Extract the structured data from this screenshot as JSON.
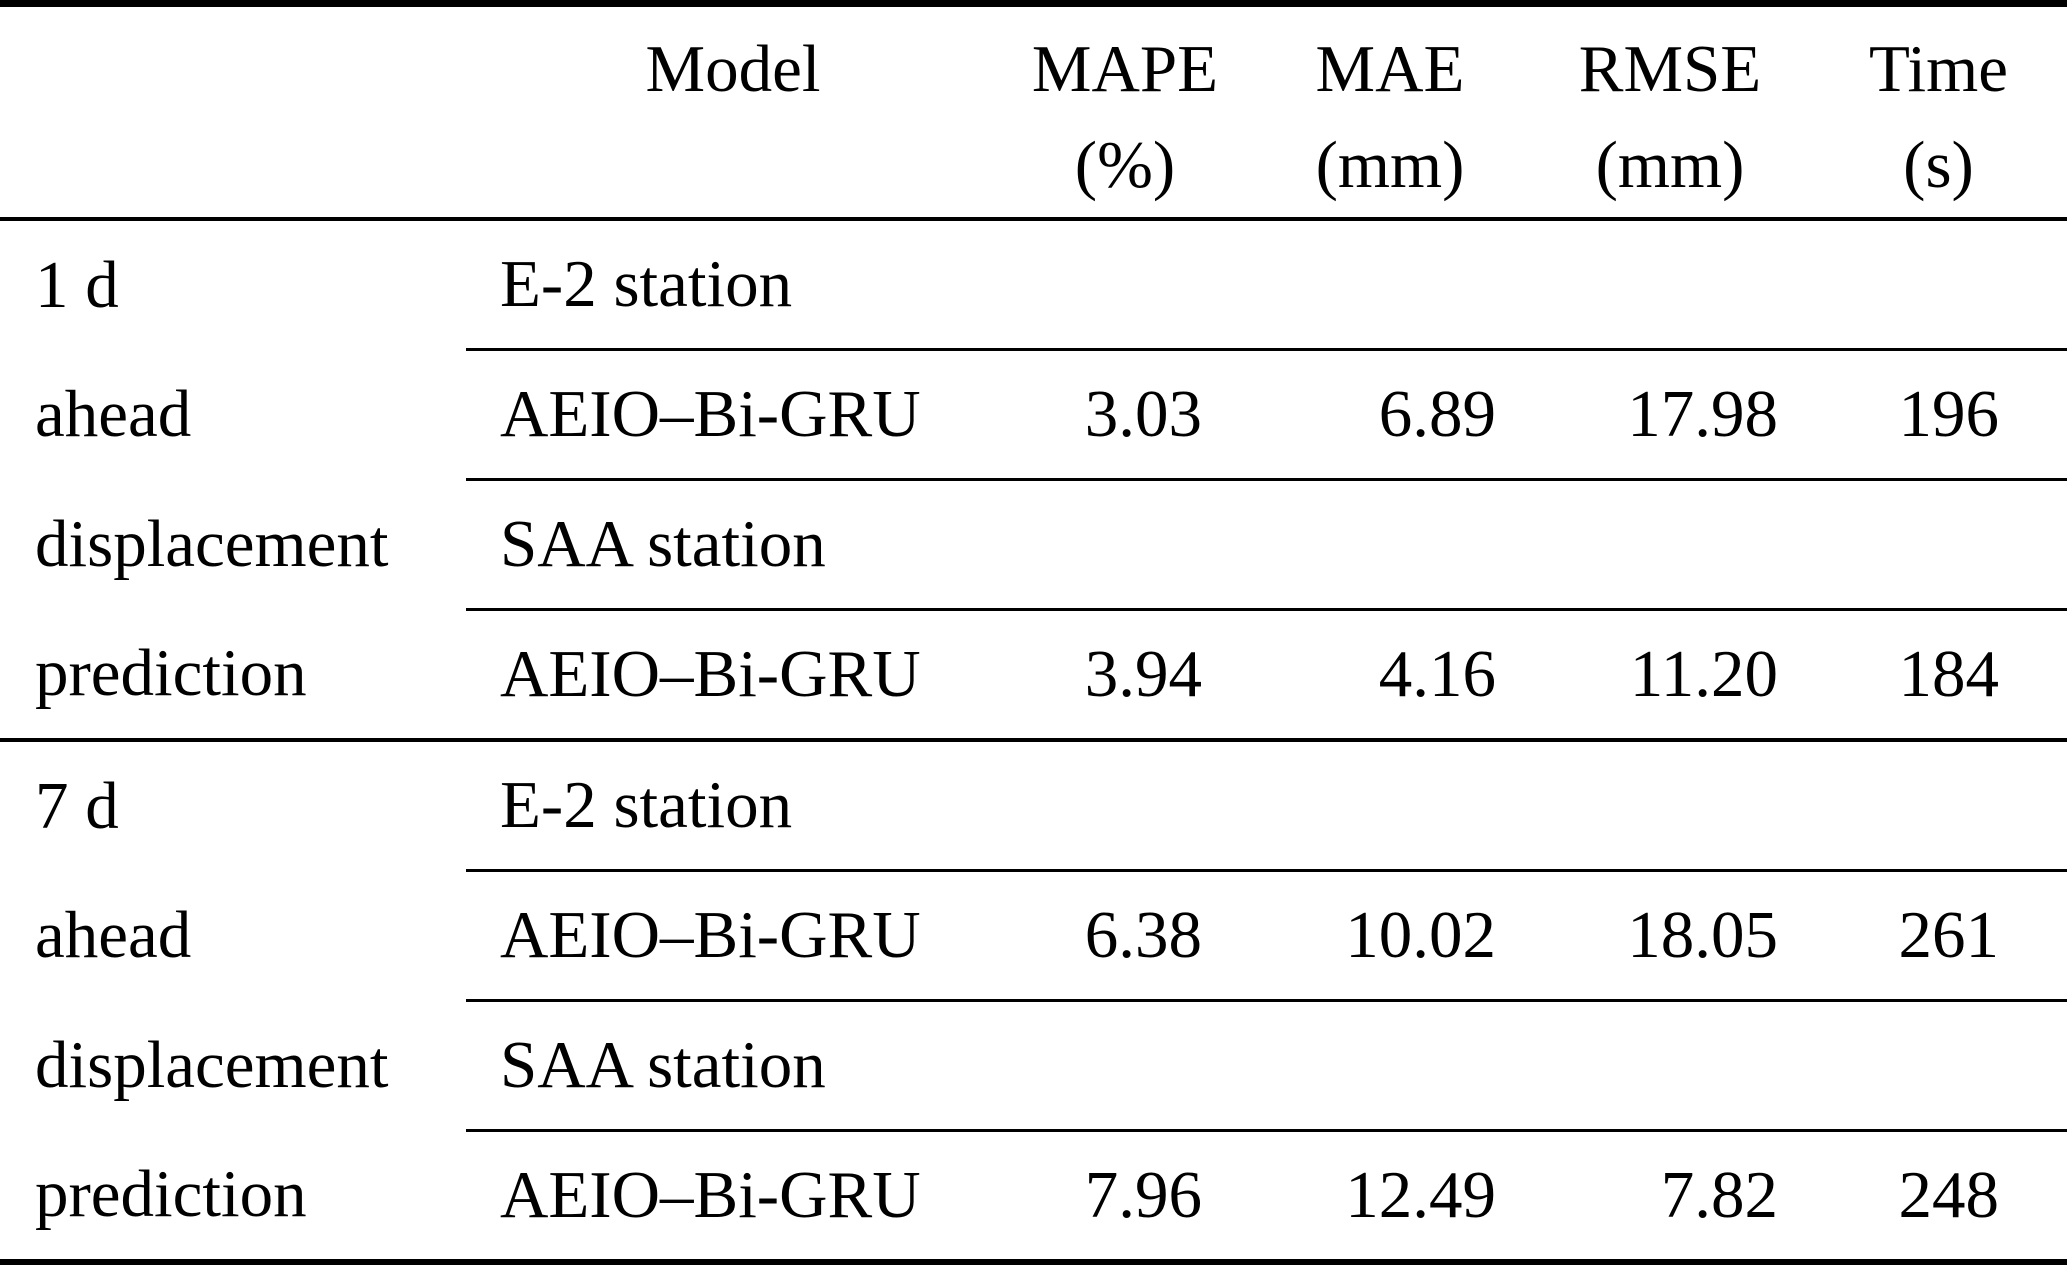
{
  "page": {
    "background": "#ffffff",
    "text_color": "#000000"
  },
  "table": {
    "header": {
      "model": "Model",
      "metrics": [
        {
          "name": "MAPE",
          "unit": "(%)"
        },
        {
          "name": "MAE",
          "unit": "(mm)"
        },
        {
          "name": "RMSE",
          "unit": "(mm)"
        },
        {
          "name": "Time",
          "unit": "(s)"
        }
      ]
    },
    "sections": [
      {
        "labels": [
          "1 d",
          "ahead",
          "displacement",
          "prediction"
        ],
        "rows": [
          {
            "kind": "station",
            "model": "E-2 station"
          },
          {
            "kind": "data",
            "model": "AEIO–Bi-GRU",
            "mape": "3.03",
            "mae": "6.89",
            "rmse": "17.98",
            "time": "196"
          },
          {
            "kind": "station",
            "model": "SAA station"
          },
          {
            "kind": "data",
            "model": "AEIO–Bi-GRU",
            "mape": "3.94",
            "mae": "4.16",
            "rmse": "11.20",
            "time": "184"
          }
        ]
      },
      {
        "labels": [
          "7 d",
          "ahead",
          "displacement",
          "prediction"
        ],
        "rows": [
          {
            "kind": "station",
            "model": "E-2 station"
          },
          {
            "kind": "data",
            "model": "AEIO–Bi-GRU",
            "mape": "6.38",
            "mae": "10.02",
            "rmse": "18.05",
            "time": "261"
          },
          {
            "kind": "station",
            "model": "SAA station"
          },
          {
            "kind": "data",
            "model": "AEIO–Bi-GRU",
            "mape": "7.96",
            "mae": "12.49",
            "rmse": "7.82",
            "time": "248"
          }
        ]
      }
    ]
  }
}
